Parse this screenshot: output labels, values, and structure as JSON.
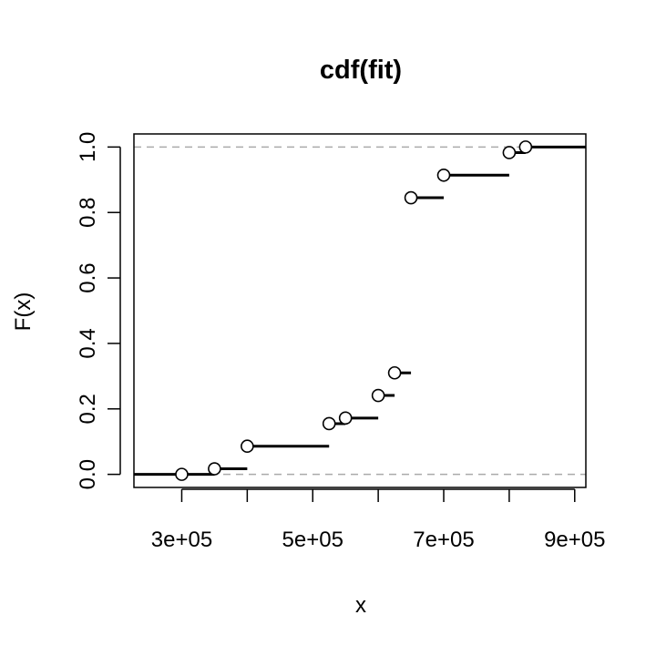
{
  "chart_data": {
    "type": "step",
    "title": "cdf(fit)",
    "xlabel": "x",
    "ylabel": "F(x)",
    "xlim": [
      227000,
      917000
    ],
    "ylim": [
      -0.04,
      1.04
    ],
    "x_ticks": [
      300000,
      400000,
      500000,
      600000,
      700000,
      800000,
      900000
    ],
    "x_tick_labels": [
      "3e+05",
      "",
      "5e+05",
      "",
      "7e+05",
      "",
      "9e+05"
    ],
    "y_ticks": [
      0.0,
      0.2,
      0.4,
      0.6,
      0.8,
      1.0
    ],
    "y_tick_labels": [
      "0.0",
      "0.2",
      "0.4",
      "0.6",
      "0.8",
      "1.0"
    ],
    "reference_lines": [
      0,
      1
    ],
    "grid": false,
    "steps": [
      {
        "x": 300000,
        "x_end": 350000,
        "y": 0.0
      },
      {
        "x": 350000,
        "x_end": 400000,
        "y": 0.017
      },
      {
        "x": 400000,
        "x_end": 525000,
        "y": 0.086
      },
      {
        "x": 525000,
        "x_end": 550000,
        "y": 0.155
      },
      {
        "x": 550000,
        "x_end": 600000,
        "y": 0.172
      },
      {
        "x": 600000,
        "x_end": 625000,
        "y": 0.241
      },
      {
        "x": 625000,
        "x_end": 650000,
        "y": 0.31
      },
      {
        "x": 650000,
        "x_end": 700000,
        "y": 0.845
      },
      {
        "x": 700000,
        "x_end": 800000,
        "y": 0.914
      },
      {
        "x": 800000,
        "x_end": 825000,
        "y": 0.983
      },
      {
        "x": 825000,
        "x_end": 917000,
        "y": 1.0
      }
    ]
  }
}
